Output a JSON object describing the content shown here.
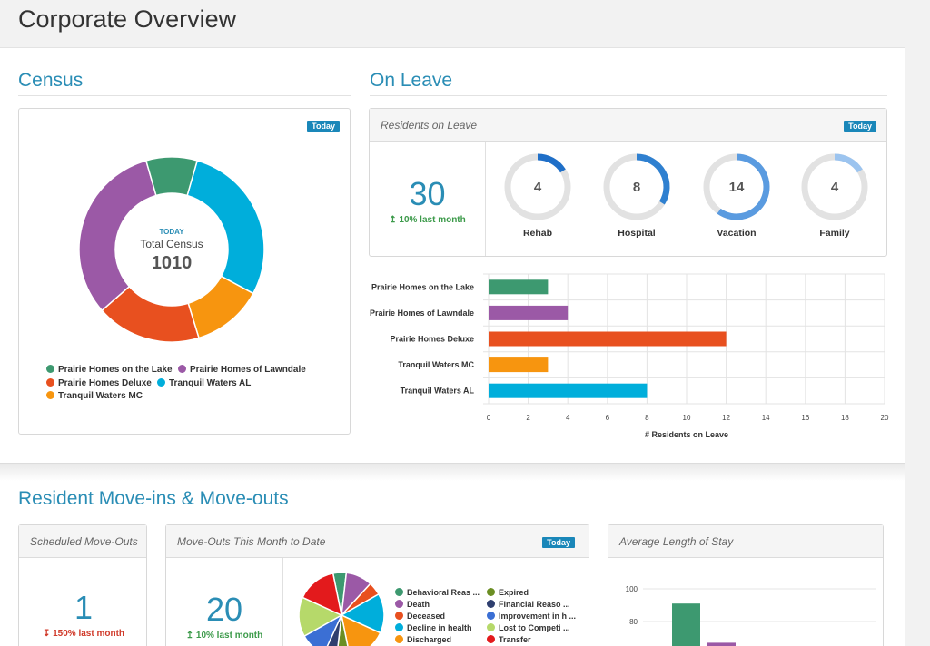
{
  "page": {
    "title": "Corporate Overview"
  },
  "colors": {
    "green": "#3d9970",
    "purple": "#9b59a6",
    "red": "#e8501f",
    "orange": "#f7950f",
    "cyan": "#00aedb",
    "accent": "#2a8db5",
    "badge": "#1a87b9"
  },
  "census": {
    "title": "Census",
    "badge": "Today",
    "center_caption": "TODAY",
    "center_label": "Total Census",
    "center_value": "1010",
    "legend": [
      {
        "label": "Prairie Homes on the Lake",
        "color": "#3d9970"
      },
      {
        "label": "Prairie Homes of Lawndale",
        "color": "#9b59a6"
      },
      {
        "label": "Prairie Homes Deluxe",
        "color": "#e8501f"
      },
      {
        "label": "Tranquil Waters AL",
        "color": "#00aedb"
      },
      {
        "label": "Tranquil Waters MC",
        "color": "#f7950f"
      }
    ]
  },
  "on_leave": {
    "title": "On Leave",
    "panel_title": "Residents on Leave",
    "badge": "Today",
    "total": "30",
    "delta": "↥ 10% last month",
    "gauges": [
      {
        "label": "Rehab",
        "value": "4",
        "fraction": 0.16,
        "color": "#1f6fc8"
      },
      {
        "label": "Hospital",
        "value": "8",
        "fraction": 0.34,
        "color": "#2f80d0"
      },
      {
        "label": "Vacation",
        "value": "14",
        "fraction": 0.6,
        "color": "#5a9be0"
      },
      {
        "label": "Family",
        "value": "4",
        "fraction": 0.16,
        "color": "#9cc4ef"
      }
    ]
  },
  "chart_data": [
    {
      "type": "pie",
      "title": "",
      "categories": [
        "Tranquil Waters AL",
        "Tranquil Waters MC",
        "Prairie Homes Deluxe",
        "Prairie Homes of Lawndale",
        "Prairie Homes on the Lake"
      ],
      "values": [
        287,
        125,
        185,
        323,
        90
      ],
      "colors": [
        "#00aedb",
        "#f7950f",
        "#e8501f",
        "#9b59a6",
        "#3d9970"
      ]
    },
    {
      "type": "bar",
      "orientation": "horizontal",
      "title": "",
      "categories": [
        "Prairie Homes on the Lake",
        "Prairie Homes of Lawndale",
        "Prairie Homes Deluxe",
        "Tranquil Waters MC",
        "Tranquil Waters AL"
      ],
      "values": [
        3,
        4,
        12,
        3,
        8
      ],
      "colors": [
        "#3d9970",
        "#9b59a6",
        "#e8501f",
        "#f7950f",
        "#00aedb"
      ],
      "xlabel": "# Residents on Leave",
      "xlim": [
        0,
        20
      ],
      "xticks": [
        "0",
        "2",
        "4",
        "6",
        "8",
        "10",
        "12",
        "14",
        "16",
        "18",
        "20"
      ],
      "grid": true
    },
    {
      "type": "pie",
      "title": "",
      "categories": [
        "Behavioral Reas ...",
        "Death",
        "Deceased",
        "Decline in health",
        "Discharged",
        "Expired",
        "Financial Reaso ...",
        "Improvement in h ...",
        "Lost to Competi ...",
        "Transfer"
      ],
      "values": [
        1,
        2,
        1,
        3,
        3,
        1,
        1,
        2,
        3,
        3
      ],
      "colors": [
        "#3d9970",
        "#9b59a6",
        "#e8501f",
        "#00aedb",
        "#f7950f",
        "#6b8e23",
        "#2f3f6f",
        "#3b6fd4",
        "#b6d96a",
        "#e31a1c"
      ]
    },
    {
      "type": "bar",
      "title": "",
      "categories": [
        "",
        ""
      ],
      "values": [
        91,
        67
      ],
      "colors": [
        "#3d9970",
        "#9b59a6"
      ],
      "yticks": [
        "100",
        "80"
      ],
      "ylim": [
        0,
        110
      ]
    }
  ],
  "moves": {
    "title": "Resident Move-ins & Move-outs",
    "scheduled": {
      "title": "Scheduled Move-Outs",
      "value": "1",
      "delta": "↧ 150% last month"
    },
    "month": {
      "title": "Move-Outs This Month to Date",
      "badge": "Today",
      "value": "20",
      "delta": "↥ 10% last month"
    },
    "alos": {
      "title": "Average Length of Stay"
    },
    "legend": [
      {
        "label": "Behavioral Reas ...",
        "color": "#3d9970"
      },
      {
        "label": "Expired",
        "color": "#6b8e23"
      },
      {
        "label": "Death",
        "color": "#9b59a6"
      },
      {
        "label": "Financial Reaso ...",
        "color": "#2f3f6f"
      },
      {
        "label": "Deceased",
        "color": "#e8501f"
      },
      {
        "label": "Improvement in h ...",
        "color": "#3b6fd4"
      },
      {
        "label": "Decline in health",
        "color": "#00aedb"
      },
      {
        "label": "Lost to Competi ...",
        "color": "#b6d96a"
      },
      {
        "label": "Discharged",
        "color": "#f7950f"
      },
      {
        "label": "Transfer",
        "color": "#e31a1c"
      }
    ]
  }
}
